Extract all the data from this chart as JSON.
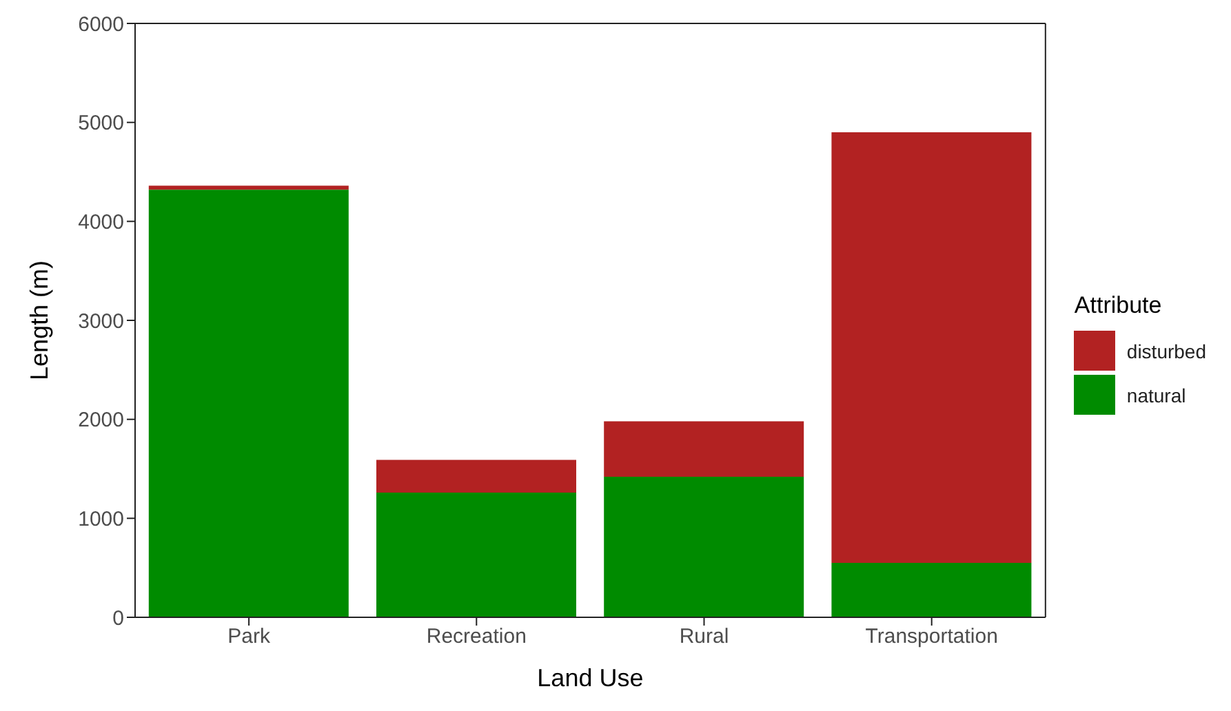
{
  "chart_data": {
    "type": "bar",
    "xlabel": "Land Use",
    "ylabel": "Length (m)",
    "legend_title": "Attribute",
    "categories": [
      "Park",
      "Recreation",
      "Rural",
      "Transportation"
    ],
    "stacked": true,
    "series": [
      {
        "name": "natural",
        "color": "#008b00",
        "values": [
          4320,
          1260,
          1420,
          550
        ]
      },
      {
        "name": "disturbed",
        "color": "#b22222",
        "values": [
          40,
          330,
          560,
          4350
        ]
      }
    ],
    "ylim": [
      0,
      6000
    ],
    "yticks": [
      0,
      1000,
      2000,
      3000,
      4000,
      5000,
      6000
    ],
    "grid": false,
    "legend": "right"
  }
}
